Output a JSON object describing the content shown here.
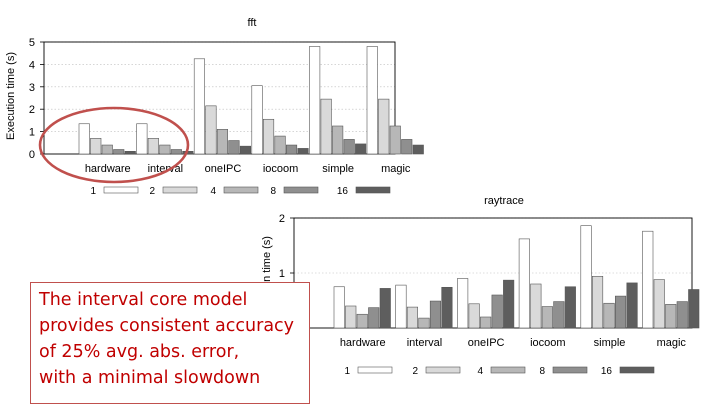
{
  "series_colors": [
    "#ffffff",
    "#d9d9d9",
    "#b7b7b7",
    "#8f8f8f",
    "#5e5e5e"
  ],
  "highlight_color": "#c0504d",
  "callout": {
    "lines": [
      "The interval core model",
      "provides consistent accuracy",
      "of 25% avg. abs. error,",
      "with a minimal slowdown"
    ]
  },
  "chart_data": [
    {
      "type": "bar",
      "title": "fft",
      "ylabel": "Execution time (s)",
      "xlabel": "",
      "ylim": [
        0,
        5
      ],
      "yticks": [
        "0",
        "1",
        "2",
        "3",
        "4",
        "5"
      ],
      "grid": true,
      "legend": "bottom",
      "categories": [
        "hardware",
        "interval",
        "oneIPC",
        "iocoom",
        "simple",
        "magic"
      ],
      "series": [
        {
          "name": "1",
          "values": [
            1.35,
            1.35,
            4.25,
            3.05,
            4.8,
            4.8
          ]
        },
        {
          "name": "2",
          "values": [
            0.7,
            0.7,
            2.15,
            1.55,
            2.45,
            2.45
          ]
        },
        {
          "name": "4",
          "values": [
            0.4,
            0.4,
            1.1,
            0.8,
            1.25,
            1.25
          ]
        },
        {
          "name": "8",
          "values": [
            0.2,
            0.2,
            0.6,
            0.4,
            0.65,
            0.65
          ]
        },
        {
          "name": "16",
          "values": [
            0.12,
            0.12,
            0.35,
            0.25,
            0.45,
            0.4
          ]
        }
      ]
    },
    {
      "type": "bar",
      "title": "raytrace",
      "ylabel": "on time (s)",
      "xlabel": "",
      "ylim": [
        0,
        2
      ],
      "yticks": [
        "1",
        "2"
      ],
      "grid": true,
      "legend": "bottom",
      "categories": [
        "hardware",
        "interval",
        "oneIPC",
        "iocoom",
        "simple",
        "magic"
      ],
      "series": [
        {
          "name": "1",
          "values": [
            0.75,
            0.78,
            0.9,
            1.62,
            1.86,
            1.76
          ]
        },
        {
          "name": "2",
          "values": [
            0.4,
            0.38,
            0.44,
            0.8,
            0.94,
            0.88
          ]
        },
        {
          "name": "4",
          "values": [
            0.25,
            0.18,
            0.2,
            0.39,
            0.45,
            0.43
          ]
        },
        {
          "name": "8",
          "values": [
            0.37,
            0.49,
            0.6,
            0.48,
            0.58,
            0.48
          ]
        },
        {
          "name": "16",
          "values": [
            0.72,
            0.74,
            0.87,
            0.75,
            0.82,
            0.7
          ]
        }
      ]
    }
  ]
}
